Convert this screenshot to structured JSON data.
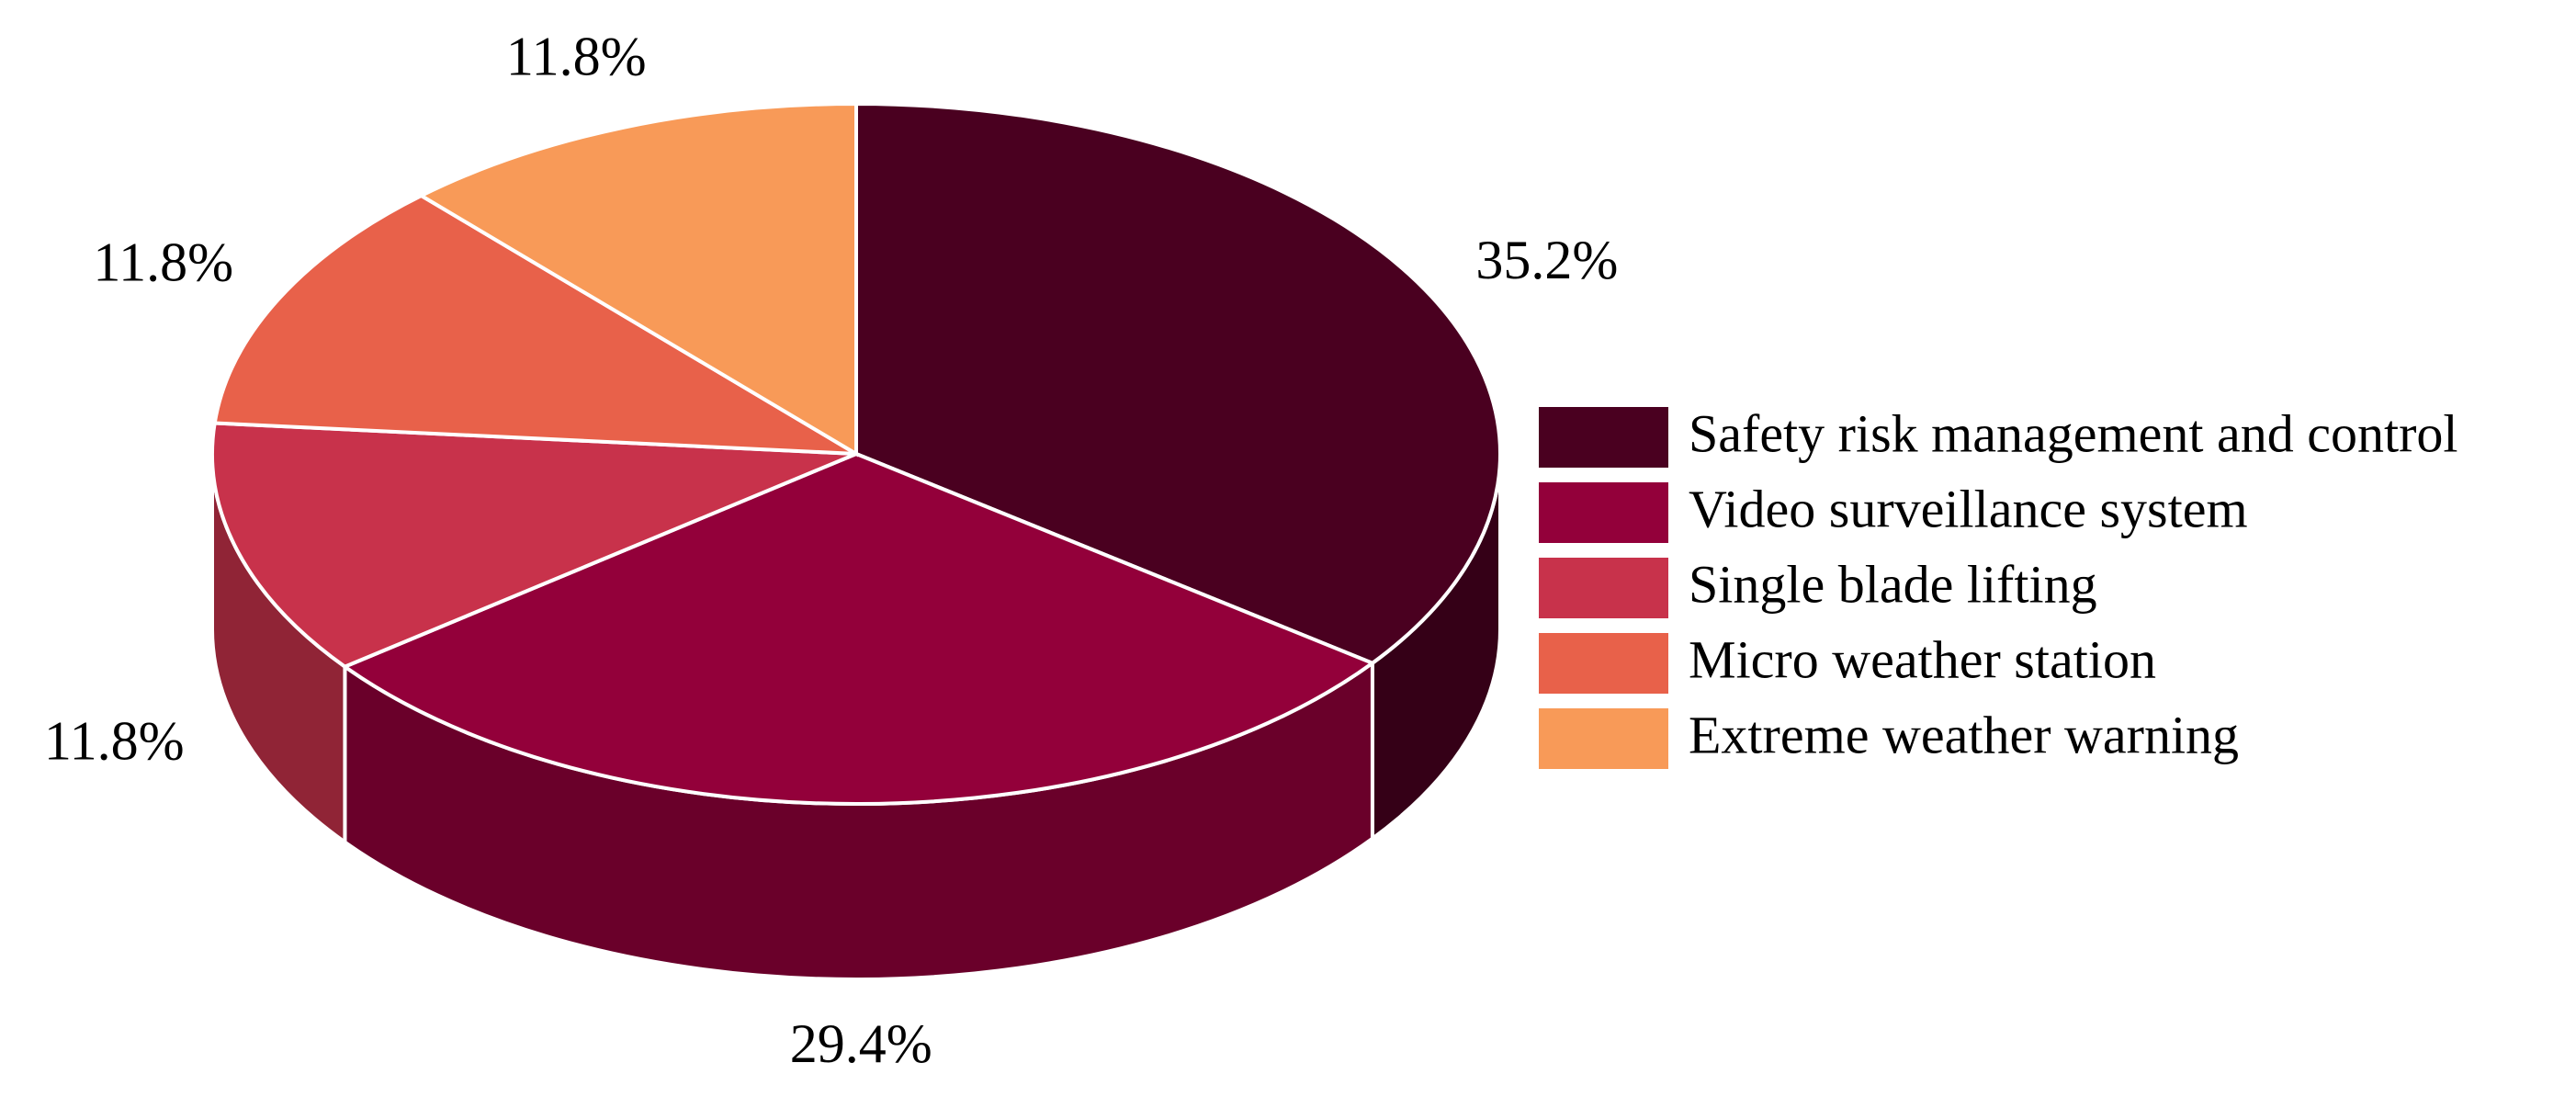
{
  "chart_data": {
    "type": "pie",
    "categories": [
      "Safety risk management and control",
      "Video surveillance system",
      "Single blade lifting",
      "Micro weather station",
      "Extreme weather warning"
    ],
    "values": [
      35.2,
      29.4,
      11.8,
      11.8,
      11.8
    ],
    "value_labels": [
      "35.2%",
      "29.4%",
      "11.8%",
      "11.8%",
      "11.8%"
    ],
    "colors": [
      "#4a0020",
      "#93003a",
      "#c8324b",
      "#e8614a",
      "#f89a58"
    ],
    "legend": "right"
  }
}
